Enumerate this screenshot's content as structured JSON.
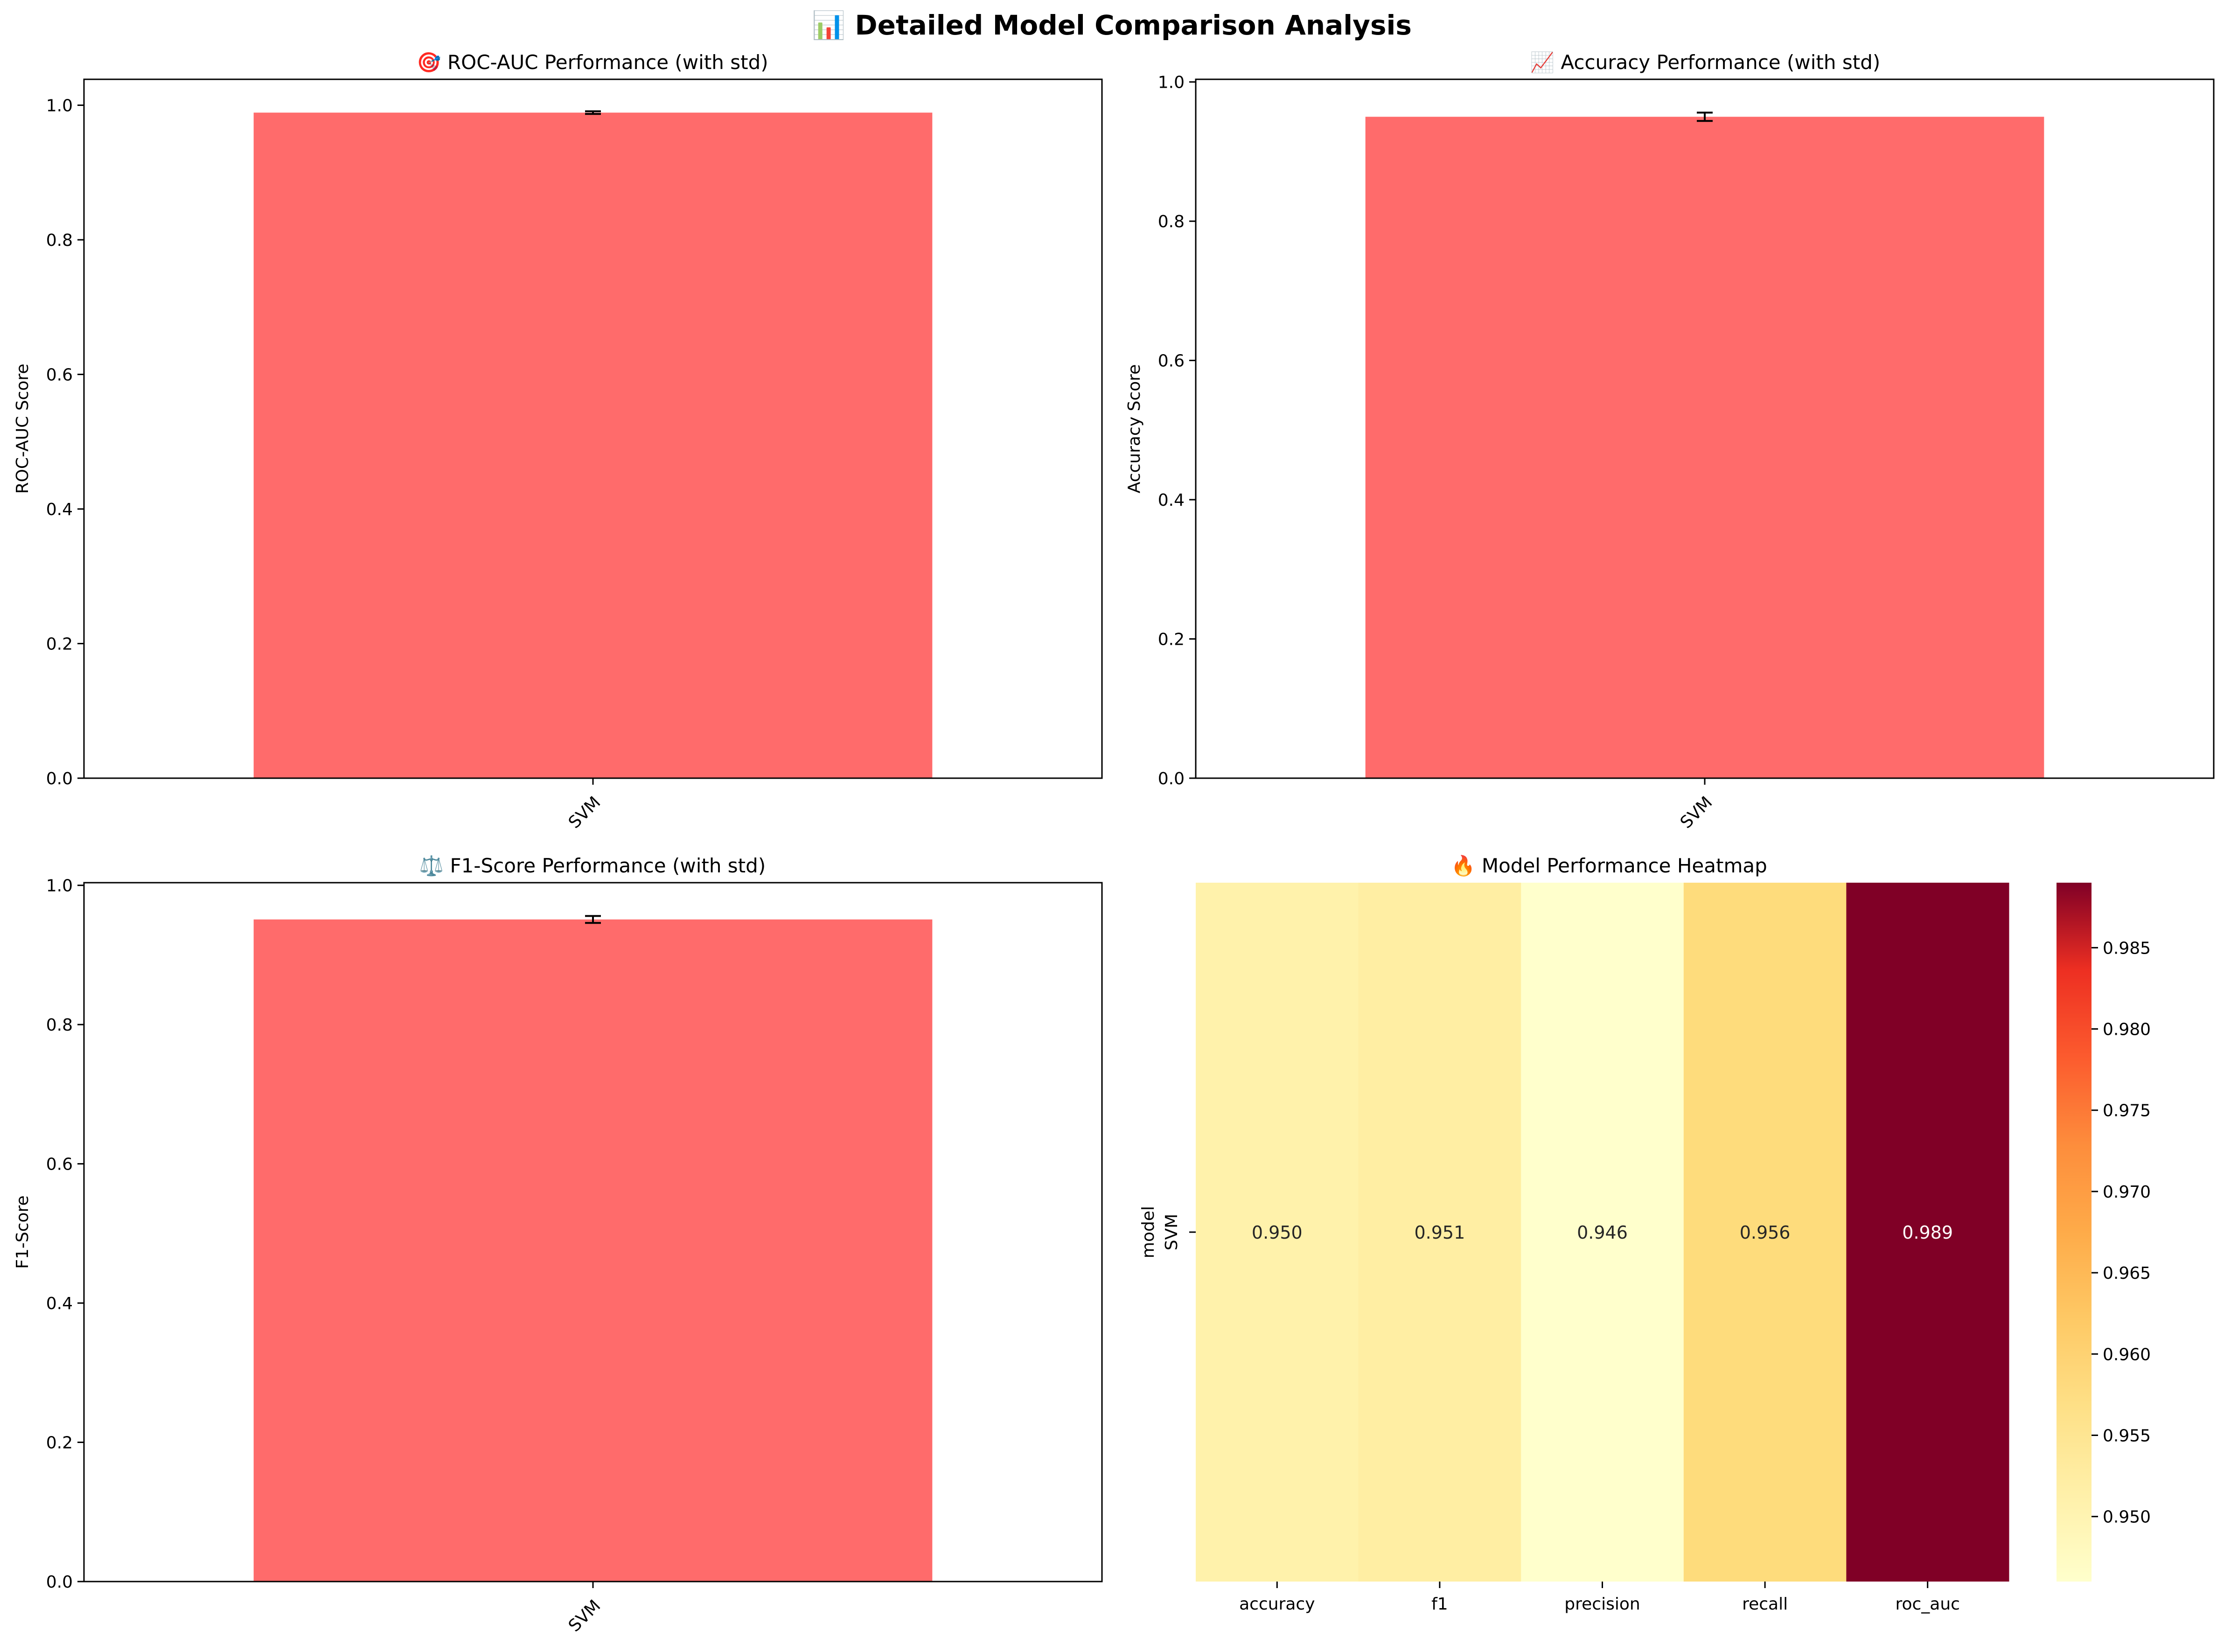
{
  "figure": {
    "title": "📊 Detailed Model Comparison Analysis"
  },
  "colors": {
    "bar": "#ff6b6b",
    "error_bar": "#000000",
    "axis": "#000000"
  },
  "chart_data": [
    {
      "type": "bar",
      "title": "🎯 ROC-AUC Performance (with std)",
      "xlabel": "",
      "ylabel": "ROC-AUC Score",
      "categories": [
        "SVM"
      ],
      "values": [
        0.989
      ],
      "std": [
        0.002
      ],
      "ylim": [
        0,
        1.0385
      ],
      "yticks": [
        "0.0",
        "0.2",
        "0.4",
        "0.6",
        "0.8",
        "1.0"
      ],
      "xtick_rotation": 45,
      "grid": false
    },
    {
      "type": "bar",
      "title": "📈 Accuracy Performance (with std)",
      "xlabel": "",
      "ylabel": "Accuracy Score",
      "categories": [
        "SVM"
      ],
      "values": [
        0.95
      ],
      "std": [
        0.006
      ],
      "ylim": [
        0,
        1.0038
      ],
      "yticks": [
        "0.0",
        "0.2",
        "0.4",
        "0.6",
        "0.8",
        "1.0"
      ],
      "xtick_rotation": 45,
      "grid": false
    },
    {
      "type": "bar",
      "title": "⚖️ F1-Score Performance (with std)",
      "xlabel": "",
      "ylabel": "F1-Score",
      "categories": [
        "SVM"
      ],
      "values": [
        0.951
      ],
      "std": [
        0.005
      ],
      "ylim": [
        0,
        1.0038
      ],
      "yticks": [
        "0.0",
        "0.2",
        "0.4",
        "0.6",
        "0.8",
        "1.0"
      ],
      "xtick_rotation": 45,
      "grid": false
    },
    {
      "type": "heatmap",
      "title": "🔥 Model Performance Heatmap",
      "ylabel": "model",
      "rows": [
        "SVM"
      ],
      "columns": [
        "accuracy",
        "f1",
        "precision",
        "recall",
        "roc_auc"
      ],
      "values": [
        [
          0.95,
          0.951,
          0.946,
          0.956,
          0.989
        ]
      ],
      "cell_labels": [
        [
          "0.950",
          "0.951",
          "0.946",
          "0.956",
          "0.989"
        ]
      ],
      "colormap": "YlOrRd",
      "vmin": 0.946,
      "vmax": 0.989,
      "colorbar_ticks": [
        "0.950",
        "0.955",
        "0.960",
        "0.965",
        "0.970",
        "0.975",
        "0.980",
        "0.985"
      ],
      "colorbar_tick_values": [
        0.95,
        0.955,
        0.96,
        0.965,
        0.97,
        0.975,
        0.98,
        0.985
      ]
    }
  ]
}
